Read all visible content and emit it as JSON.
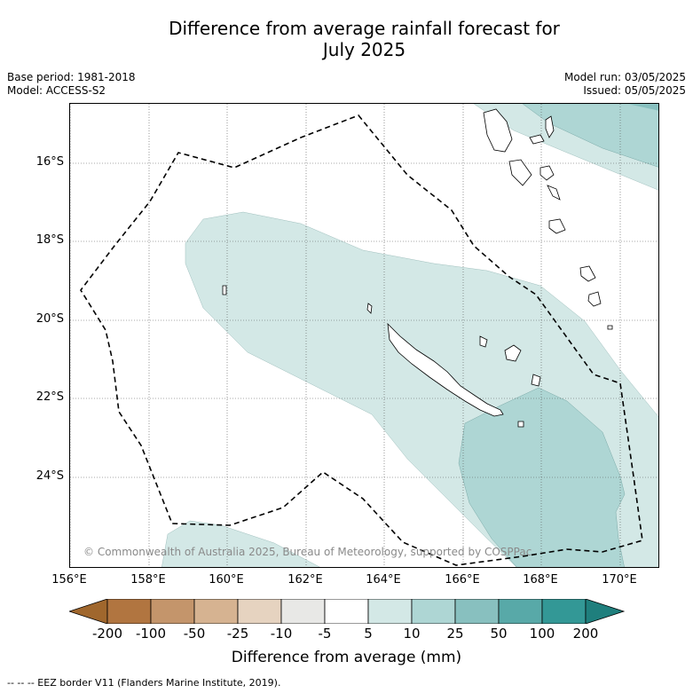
{
  "title_line1": "Difference from average rainfall forecast for",
  "title_line2": "July 2025",
  "base_period": "Base period: 1981-2018",
  "model": "Model: ACCESS-S2",
  "model_run": "Model run: 03/05/2025",
  "issued": "Issued: 05/05/2025",
  "copyright": "© Commonwealth of Australia 2025, Bureau of Meteorology, supported by COSPPac",
  "lat_labels": [
    "16°S",
    "18°S",
    "20°S",
    "22°S",
    "24°S"
  ],
  "lon_labels": [
    "156°E",
    "158°E",
    "160°E",
    "162°E",
    "164°E",
    "166°E",
    "168°E",
    "170°E"
  ],
  "colorbar": {
    "labels": [
      "-200",
      "-100",
      "-50",
      "-25",
      "-10",
      "-5",
      "5",
      "10",
      "25",
      "50",
      "100",
      "200"
    ],
    "colors": [
      "#a0672d",
      "#b17540",
      "#c4956b",
      "#d6b391",
      "#e6d3c0",
      "#e8e8e6",
      "#ffffff",
      "#d3e8e6",
      "#aed6d4",
      "#88c0bf",
      "#58a9a8",
      "#339896",
      "#1f7f7d"
    ],
    "title": "Difference from average (mm)"
  },
  "footer": "-- -- -- EEZ border V11 (Flanders Marine Institute, 2019).",
  "legend_colors": {
    "band_5_10": "#d3e8e6",
    "band_10_25": "#aed6d4",
    "band_25_50": "#88c0bf"
  }
}
